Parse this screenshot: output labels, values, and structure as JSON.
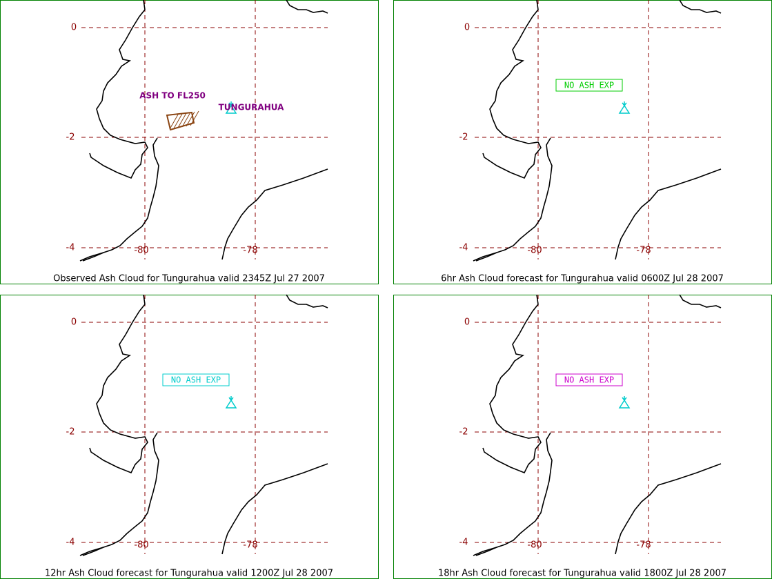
{
  "grid": {
    "lat_labels": [
      "0",
      "-2",
      "-4"
    ],
    "lon_labels": [
      "-80",
      "-78"
    ]
  },
  "panels": [
    {
      "caption": "Observed Ash Cloud for Tungurahua valid 2345Z Jul 27 2007",
      "ash_label": "ASH TO FL250",
      "volcano_label": "TUNGURAHUA"
    },
    {
      "caption": "6hr Ash Cloud forecast for Tungurahua valid 0600Z Jul 28 2007",
      "note": "NO ASH EXP",
      "note_color": "#00cc00"
    },
    {
      "caption": "12hr Ash Cloud forecast for Tungurahua valid 1200Z Jul 28 2007",
      "note": "NO ASH EXP",
      "note_color": "#00cccc"
    },
    {
      "caption": "18hr Ash Cloud forecast for Tungurahua valid 1800Z Jul 28 2007",
      "note": "NO ASH EXP",
      "note_color": "#cc00cc"
    }
  ]
}
